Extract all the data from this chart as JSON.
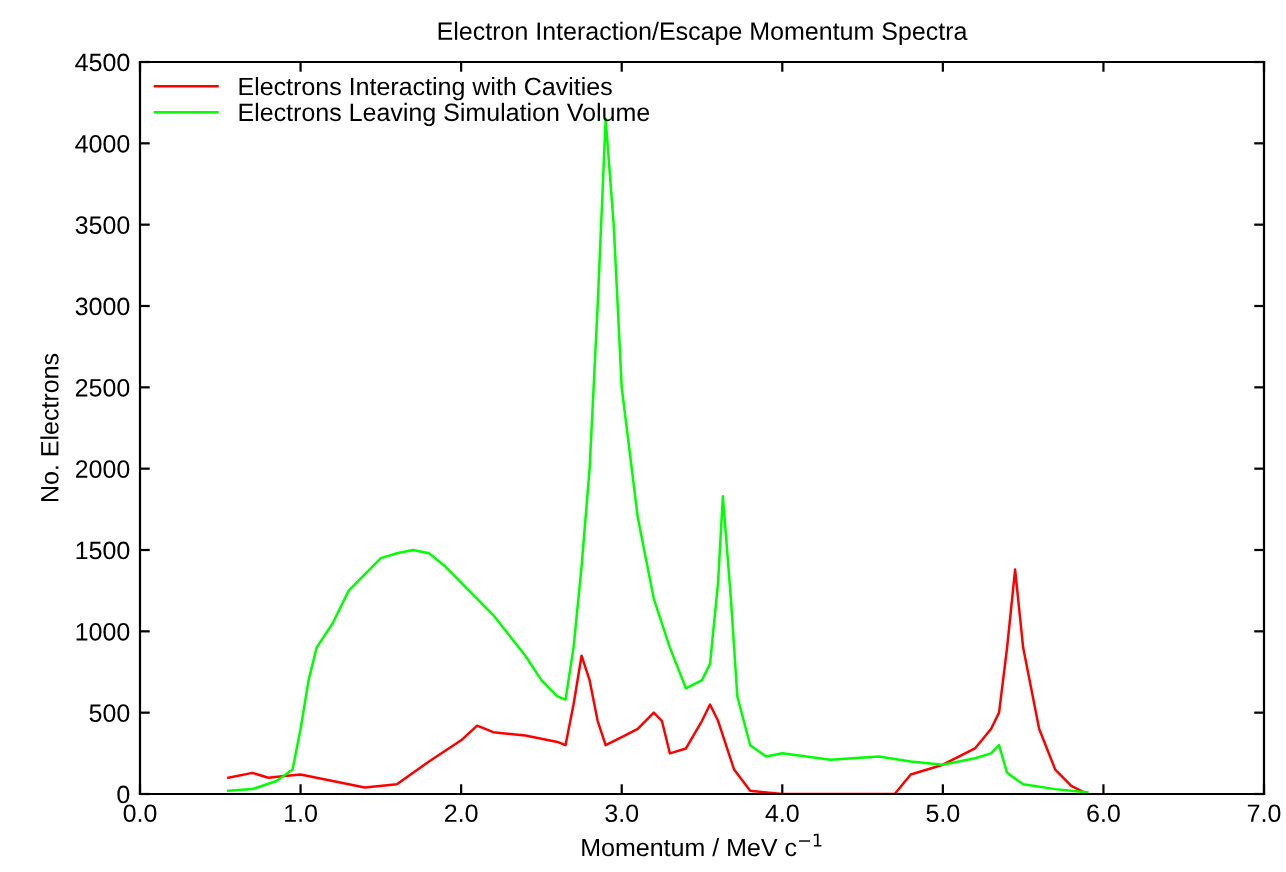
{
  "chart_data": {
    "type": "line",
    "title": "Electron Interaction/Escape Momentum Spectra",
    "xlabel": "Momentum / MeV c$^{−1}$",
    "ylabel": "No. Electrons",
    "xlim": [
      0,
      7
    ],
    "ylim": [
      0,
      4500
    ],
    "xticks": [
      {
        "value": 0,
        "label": "0.0"
      },
      {
        "value": 1,
        "label": "1.0"
      },
      {
        "value": 2,
        "label": "2.0"
      },
      {
        "value": 3,
        "label": "3.0"
      },
      {
        "value": 4,
        "label": "4.0"
      },
      {
        "value": 5,
        "label": "5.0"
      },
      {
        "value": 6,
        "label": "6.0"
      },
      {
        "value": 7,
        "label": "7.0"
      }
    ],
    "yticks": [
      0,
      500,
      1000,
      1500,
      2000,
      2500,
      3000,
      3500,
      4000,
      4500
    ],
    "grid": false,
    "legend": "top left",
    "marker": "none",
    "line_style": "solid",
    "series": [
      {
        "name": "Electrons Interacting with Cavities",
        "color": "#ff0000",
        "x": [
          0.55,
          0.7,
          0.8,
          0.9,
          1.0,
          1.2,
          1.4,
          1.6,
          1.8,
          2.0,
          2.1,
          2.2,
          2.4,
          2.6,
          2.65,
          2.7,
          2.75,
          2.8,
          2.85,
          2.9,
          3.0,
          3.1,
          3.2,
          3.25,
          3.3,
          3.4,
          3.5,
          3.55,
          3.6,
          3.7,
          3.8,
          4.0,
          4.5,
          4.7,
          4.8,
          5.0,
          5.2,
          5.3,
          5.35,
          5.4,
          5.45,
          5.5,
          5.6,
          5.7,
          5.8,
          5.9
        ],
        "values": [
          100,
          130,
          100,
          110,
          120,
          80,
          40,
          60,
          200,
          330,
          420,
          380,
          360,
          320,
          300,
          550,
          850,
          700,
          450,
          300,
          350,
          400,
          500,
          450,
          250,
          280,
          450,
          550,
          450,
          150,
          20,
          0,
          0,
          0,
          120,
          180,
          280,
          400,
          500,
          900,
          1380,
          900,
          400,
          150,
          50,
          0
        ]
      },
      {
        "name": "Electrons Leaving Simulation Volume",
        "color": "#00ff00",
        "x": [
          0.55,
          0.7,
          0.85,
          0.95,
          1.0,
          1.05,
          1.1,
          1.2,
          1.3,
          1.4,
          1.5,
          1.6,
          1.7,
          1.8,
          1.9,
          2.0,
          2.2,
          2.4,
          2.5,
          2.6,
          2.65,
          2.7,
          2.75,
          2.8,
          2.85,
          2.9,
          2.95,
          3.0,
          3.1,
          3.2,
          3.3,
          3.4,
          3.5,
          3.55,
          3.6,
          3.63,
          3.68,
          3.72,
          3.8,
          3.9,
          4.0,
          4.3,
          4.6,
          4.8,
          5.0,
          5.2,
          5.3,
          5.35,
          5.4,
          5.5,
          5.7,
          5.9
        ],
        "values": [
          20,
          30,
          80,
          150,
          400,
          700,
          900,
          1050,
          1250,
          1350,
          1450,
          1480,
          1500,
          1480,
          1400,
          1300,
          1100,
          850,
          700,
          600,
          580,
          900,
          1400,
          2000,
          3000,
          4150,
          3500,
          2500,
          1700,
          1200,
          900,
          650,
          700,
          800,
          1300,
          1830,
          1200,
          600,
          300,
          230,
          250,
          210,
          230,
          200,
          180,
          220,
          250,
          300,
          130,
          60,
          30,
          10
        ]
      }
    ]
  }
}
